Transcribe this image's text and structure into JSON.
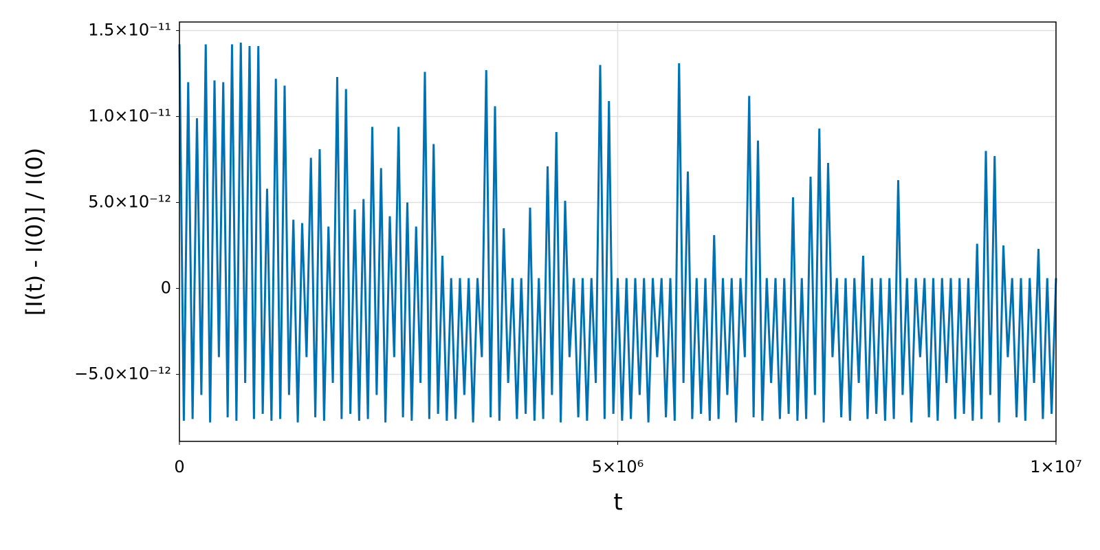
{
  "chart_data": {
    "type": "line",
    "x_label": "t",
    "y_label": "[I(t) - I(0)] / I(0)",
    "color": "#0071b2",
    "grid": true,
    "xlim": [
      0,
      10000000
    ],
    "ylim": [
      -8.9e-12,
      1.55e-11
    ],
    "xticks": [
      0,
      {
        "value": 5000000,
        "label": "5×10⁶"
      },
      {
        "value": 10000000,
        "label": "1×10⁷"
      }
    ],
    "yticks": [
      {
        "value": -5e-12,
        "label": "−5.0×10⁻¹²"
      },
      0,
      {
        "value": 5e-12,
        "label": "5.0×10⁻¹²"
      },
      {
        "value": 1e-11,
        "label": "1.0×10⁻¹¹"
      },
      {
        "value": 1.5e-11,
        "label": "1.5×10⁻¹¹"
      }
    ],
    "x": [
      0,
      50000,
      100000,
      150000,
      200000,
      250000,
      300000,
      350000,
      400000,
      450000,
      500000,
      550000,
      600000,
      650000,
      700000,
      750000,
      800000,
      850000,
      900000,
      950000,
      1000000,
      1050000,
      1100000,
      1150000,
      1200000,
      1250000,
      1300000,
      1350000,
      1400000,
      1450000,
      1500000,
      1550000,
      1600000,
      1650000,
      1700000,
      1750000,
      1800000,
      1850000,
      1900000,
      1950000,
      2000000,
      2050000,
      2100000,
      2150000,
      2200000,
      2250000,
      2300000,
      2350000,
      2400000,
      2450000,
      2500000,
      2550000,
      2600000,
      2650000,
      2700000,
      2750000,
      2800000,
      2850000,
      2900000,
      2950000,
      3000000,
      3050000,
      3100000,
      3150000,
      3200000,
      3250000,
      3300000,
      3350000,
      3400000,
      3450000,
      3500000,
      3550000,
      3600000,
      3650000,
      3700000,
      3750000,
      3800000,
      3850000,
      3900000,
      3950000,
      4000000,
      4050000,
      4100000,
      4150000,
      4200000,
      4250000,
      4300000,
      4350000,
      4400000,
      4450000,
      4500000,
      4550000,
      4600000,
      4650000,
      4700000,
      4750000,
      4800000,
      4850000,
      4900000,
      4950000,
      5000000,
      5050000,
      5100000,
      5150000,
      5200000,
      5250000,
      5300000,
      5350000,
      5400000,
      5450000,
      5500000,
      5550000,
      5600000,
      5650000,
      5700000,
      5750000,
      5800000,
      5850000,
      5900000,
      5950000,
      6000000,
      6050000,
      6100000,
      6150000,
      6200000,
      6250000,
      6300000,
      6350000,
      6400000,
      6450000,
      6500000,
      6550000,
      6600000,
      6650000,
      6700000,
      6750000,
      6800000,
      6850000,
      6900000,
      6950000,
      7000000,
      7050000,
      7100000,
      7150000,
      7200000,
      7250000,
      7300000,
      7350000,
      7400000,
      7450000,
      7500000,
      7550000,
      7600000,
      7650000,
      7700000,
      7750000,
      7800000,
      7850000,
      7900000,
      7950000,
      8000000,
      8050000,
      8100000,
      8150000,
      8200000,
      8250000,
      8300000,
      8350000,
      8400000,
      8450000,
      8500000,
      8550000,
      8600000,
      8650000,
      8700000,
      8750000,
      8800000,
      8850000,
      8900000,
      8950000,
      9000000,
      9050000,
      9100000,
      9150000,
      9200000,
      9250000,
      9300000,
      9350000,
      9400000,
      9450000,
      9500000,
      9550000,
      9600000,
      9650000,
      9700000,
      9750000,
      9800000,
      9850000,
      9900000,
      9950000,
      10000000
    ],
    "values": [
      1.42e-11,
      -7.7e-12,
      1.2e-11,
      -7.6e-12,
      9.9e-12,
      -6.2e-12,
      1.42e-11,
      -7.8e-12,
      1.21e-11,
      -4e-12,
      1.2e-11,
      -7.5e-12,
      1.42e-11,
      -7.7e-12,
      1.43e-11,
      -5.5e-12,
      1.41e-11,
      -7.6e-12,
      1.41e-11,
      -7.3e-12,
      5.8e-12,
      -7.7e-12,
      1.22e-11,
      -7.6e-12,
      1.18e-11,
      -6.2e-12,
      4e-12,
      -7.8e-12,
      3.8e-12,
      -4e-12,
      7.6e-12,
      -7.5e-12,
      8.1e-12,
      -7.7e-12,
      3.6e-12,
      -5.5e-12,
      1.23e-11,
      -7.6e-12,
      1.16e-11,
      -7.3e-12,
      4.6e-12,
      -7.7e-12,
      5.2e-12,
      -7.6e-12,
      9.4e-12,
      -6.2e-12,
      7e-12,
      -7.8e-12,
      4.2e-12,
      -4e-12,
      9.4e-12,
      -7.5e-12,
      5e-12,
      -7.7e-12,
      3.6e-12,
      -5.5e-12,
      1.26e-11,
      -7.6e-12,
      8.4e-12,
      -7.3e-12,
      1.9e-12,
      -7.7e-12,
      6e-13,
      -7.6e-12,
      6e-13,
      -6.2e-12,
      6e-13,
      -7.8e-12,
      6e-13,
      -4e-12,
      1.27e-11,
      -7.5e-12,
      1.06e-11,
      -7.7e-12,
      3.5e-12,
      -5.5e-12,
      6e-13,
      -7.6e-12,
      6e-13,
      -7.3e-12,
      4.7e-12,
      -7.7e-12,
      6e-13,
      -7.6e-12,
      7.1e-12,
      -6.2e-12,
      9.1e-12,
      -7.8e-12,
      5.1e-12,
      -4e-12,
      6e-13,
      -7.5e-12,
      6e-13,
      -7.7e-12,
      6e-13,
      -5.5e-12,
      1.3e-11,
      -7.6e-12,
      1.09e-11,
      -7.3e-12,
      6e-13,
      -7.7e-12,
      6e-13,
      -7.6e-12,
      6e-13,
      -6.2e-12,
      6e-13,
      -7.8e-12,
      6e-13,
      -4e-12,
      6e-13,
      -7.5e-12,
      6e-13,
      -7.7e-12,
      1.31e-11,
      -5.5e-12,
      6.8e-12,
      -7.6e-12,
      6e-13,
      -7.3e-12,
      6e-13,
      -7.7e-12,
      3.1e-12,
      -7.6e-12,
      6e-13,
      -6.2e-12,
      6e-13,
      -7.8e-12,
      6e-13,
      -4e-12,
      1.12e-11,
      -7.5e-12,
      8.6e-12,
      -7.7e-12,
      6e-13,
      -5.5e-12,
      6e-13,
      -7.6e-12,
      6e-13,
      -7.3e-12,
      5.3e-12,
      -7.7e-12,
      6e-13,
      -7.6e-12,
      6.5e-12,
      -6.2e-12,
      9.3e-12,
      -7.8e-12,
      7.3e-12,
      -4e-12,
      6e-13,
      -7.5e-12,
      6e-13,
      -7.7e-12,
      6e-13,
      -5.5e-12,
      1.9e-12,
      -7.6e-12,
      6e-13,
      -7.3e-12,
      6e-13,
      -7.7e-12,
      6e-13,
      -7.6e-12,
      6.3e-12,
      -6.2e-12,
      6e-13,
      -7.8e-12,
      6e-13,
      -4e-12,
      6e-13,
      -7.5e-12,
      6e-13,
      -7.7e-12,
      6e-13,
      -5.5e-12,
      6e-13,
      -7.6e-12,
      6e-13,
      -7.3e-12,
      6e-13,
      -7.7e-12,
      2.6e-12,
      -7.6e-12,
      8e-12,
      -6.2e-12,
      7.7e-12,
      -7.8e-12,
      2.5e-12,
      -4e-12,
      6e-13,
      -7.5e-12,
      6e-13,
      -7.7e-12,
      6e-13,
      -5.5e-12,
      2.3e-12,
      -7.6e-12,
      6e-13,
      -7.3e-12,
      6e-13
    ]
  }
}
